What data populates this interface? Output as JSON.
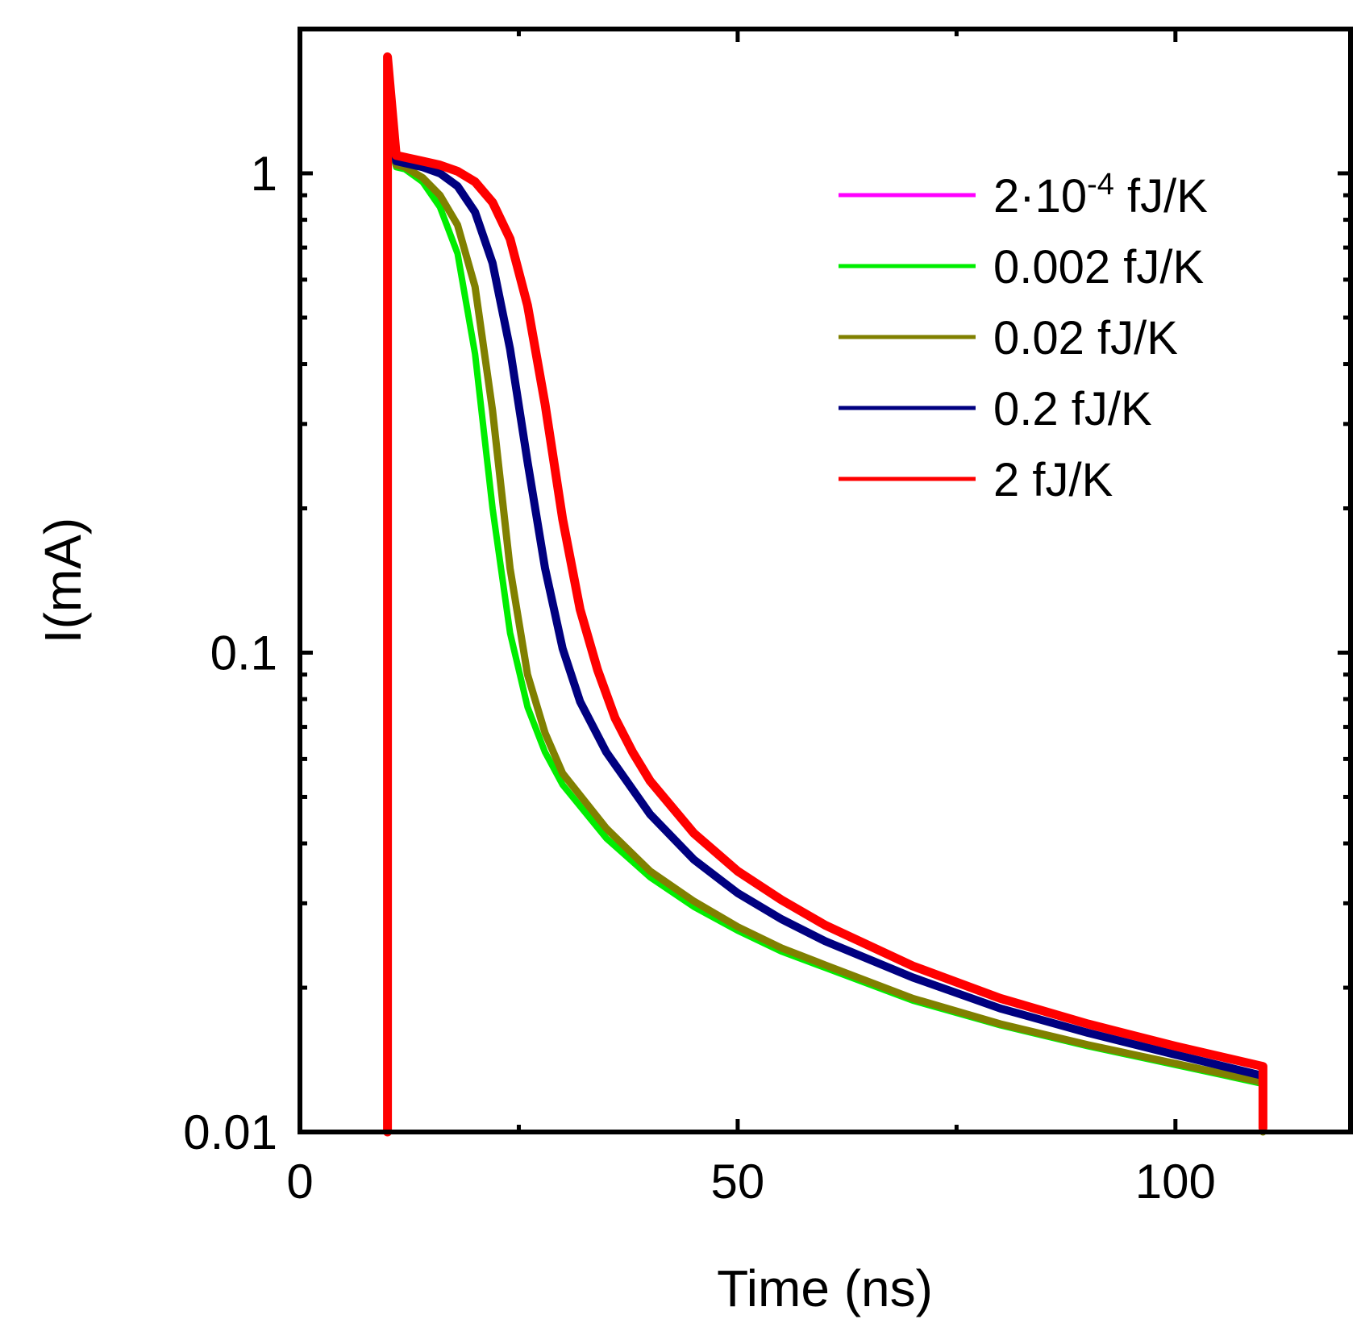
{
  "chart_data": {
    "type": "line",
    "title": "",
    "xlabel": "Time (ns)",
    "ylabel": "I(mA)",
    "xscale": "linear",
    "yscale": "log",
    "xlim": [
      0,
      120
    ],
    "ylim": [
      0.01,
      2
    ],
    "x_ticks": [
      0,
      50,
      100
    ],
    "x_tick_labels": [
      "0",
      "50",
      "100"
    ],
    "y_ticks": [
      0.01,
      0.1,
      1
    ],
    "y_tick_labels": [
      "0.01",
      "0.1",
      "1"
    ],
    "legend_position": "top-right",
    "series": [
      {
        "name": "2·10^-4 fJ/K",
        "label_main": "2·10",
        "label_sup": "-4",
        "label_tail": " fJ/K",
        "color": "#ff00ff",
        "x": [
          10,
          10,
          11,
          12,
          14,
          16,
          18,
          20,
          22,
          24,
          26,
          28,
          30,
          35,
          40,
          45,
          50,
          55,
          60,
          70,
          80,
          90,
          100,
          110,
          110
        ],
        "y": [
          0.01,
          1.2,
          1.03,
          1.02,
          0.96,
          0.85,
          0.68,
          0.42,
          0.2,
          0.11,
          0.077,
          0.062,
          0.053,
          0.041,
          0.034,
          0.0295,
          0.0263,
          0.0238,
          0.022,
          0.0188,
          0.0167,
          0.0151,
          0.0138,
          0.0126,
          0.01
        ]
      },
      {
        "name": "0.002 fJ/K",
        "label_main": "0.002 fJ/K",
        "label_sup": "",
        "label_tail": "",
        "color": "#00ee00",
        "x": [
          10,
          10,
          11,
          12,
          14,
          16,
          18,
          20,
          22,
          24,
          26,
          28,
          30,
          35,
          40,
          45,
          50,
          55,
          60,
          70,
          80,
          90,
          100,
          110,
          110
        ],
        "y": [
          0.01,
          1.2,
          1.03,
          1.02,
          0.96,
          0.85,
          0.68,
          0.42,
          0.2,
          0.11,
          0.077,
          0.062,
          0.053,
          0.041,
          0.034,
          0.0295,
          0.0263,
          0.0238,
          0.022,
          0.0188,
          0.0167,
          0.0151,
          0.0138,
          0.0126,
          0.01
        ]
      },
      {
        "name": "0.02 fJ/K",
        "label_main": "0.02 fJ/K",
        "label_sup": "",
        "label_tail": "",
        "color": "#808000",
        "x": [
          10,
          10,
          11,
          12,
          14,
          16,
          18,
          20,
          22,
          24,
          26,
          28,
          30,
          35,
          40,
          45,
          50,
          55,
          60,
          70,
          80,
          90,
          100,
          110,
          110
        ],
        "y": [
          0.01,
          1.25,
          1.04,
          1.03,
          0.98,
          0.9,
          0.78,
          0.58,
          0.32,
          0.15,
          0.09,
          0.068,
          0.056,
          0.043,
          0.035,
          0.0303,
          0.0268,
          0.0242,
          0.0223,
          0.019,
          0.0168,
          0.0152,
          0.0139,
          0.0127,
          0.01
        ]
      },
      {
        "name": "0.2 fJ/K",
        "label_main": "0.2 fJ/K",
        "label_sup": "",
        "label_tail": "",
        "color": "#000080",
        "x": [
          10,
          10,
          11,
          12,
          14,
          16,
          18,
          20,
          22,
          24,
          26,
          28,
          30,
          32,
          35,
          40,
          45,
          50,
          55,
          60,
          70,
          80,
          90,
          100,
          110,
          110
        ],
        "y": [
          0.01,
          1.5,
          1.06,
          1.05,
          1.03,
          1.0,
          0.94,
          0.83,
          0.65,
          0.43,
          0.25,
          0.15,
          0.102,
          0.079,
          0.062,
          0.046,
          0.037,
          0.0315,
          0.0278,
          0.025,
          0.021,
          0.0181,
          0.0161,
          0.0145,
          0.0131,
          0.0102
        ]
      },
      {
        "name": "2 fJ/K",
        "label_main": "2 fJ/K",
        "label_sup": "",
        "label_tail": "",
        "color": "#ff0000",
        "x": [
          10,
          10,
          11,
          12,
          14,
          16,
          18,
          20,
          22,
          24,
          26,
          28,
          30,
          32,
          34,
          36,
          38,
          40,
          45,
          50,
          55,
          60,
          70,
          80,
          90,
          100,
          110,
          110
        ],
        "y": [
          0.01,
          1.75,
          1.09,
          1.08,
          1.06,
          1.04,
          1.01,
          0.96,
          0.87,
          0.73,
          0.53,
          0.33,
          0.19,
          0.123,
          0.092,
          0.073,
          0.062,
          0.054,
          0.042,
          0.035,
          0.0305,
          0.027,
          0.0222,
          0.019,
          0.0168,
          0.0151,
          0.0137,
          0.0102
        ]
      }
    ]
  }
}
